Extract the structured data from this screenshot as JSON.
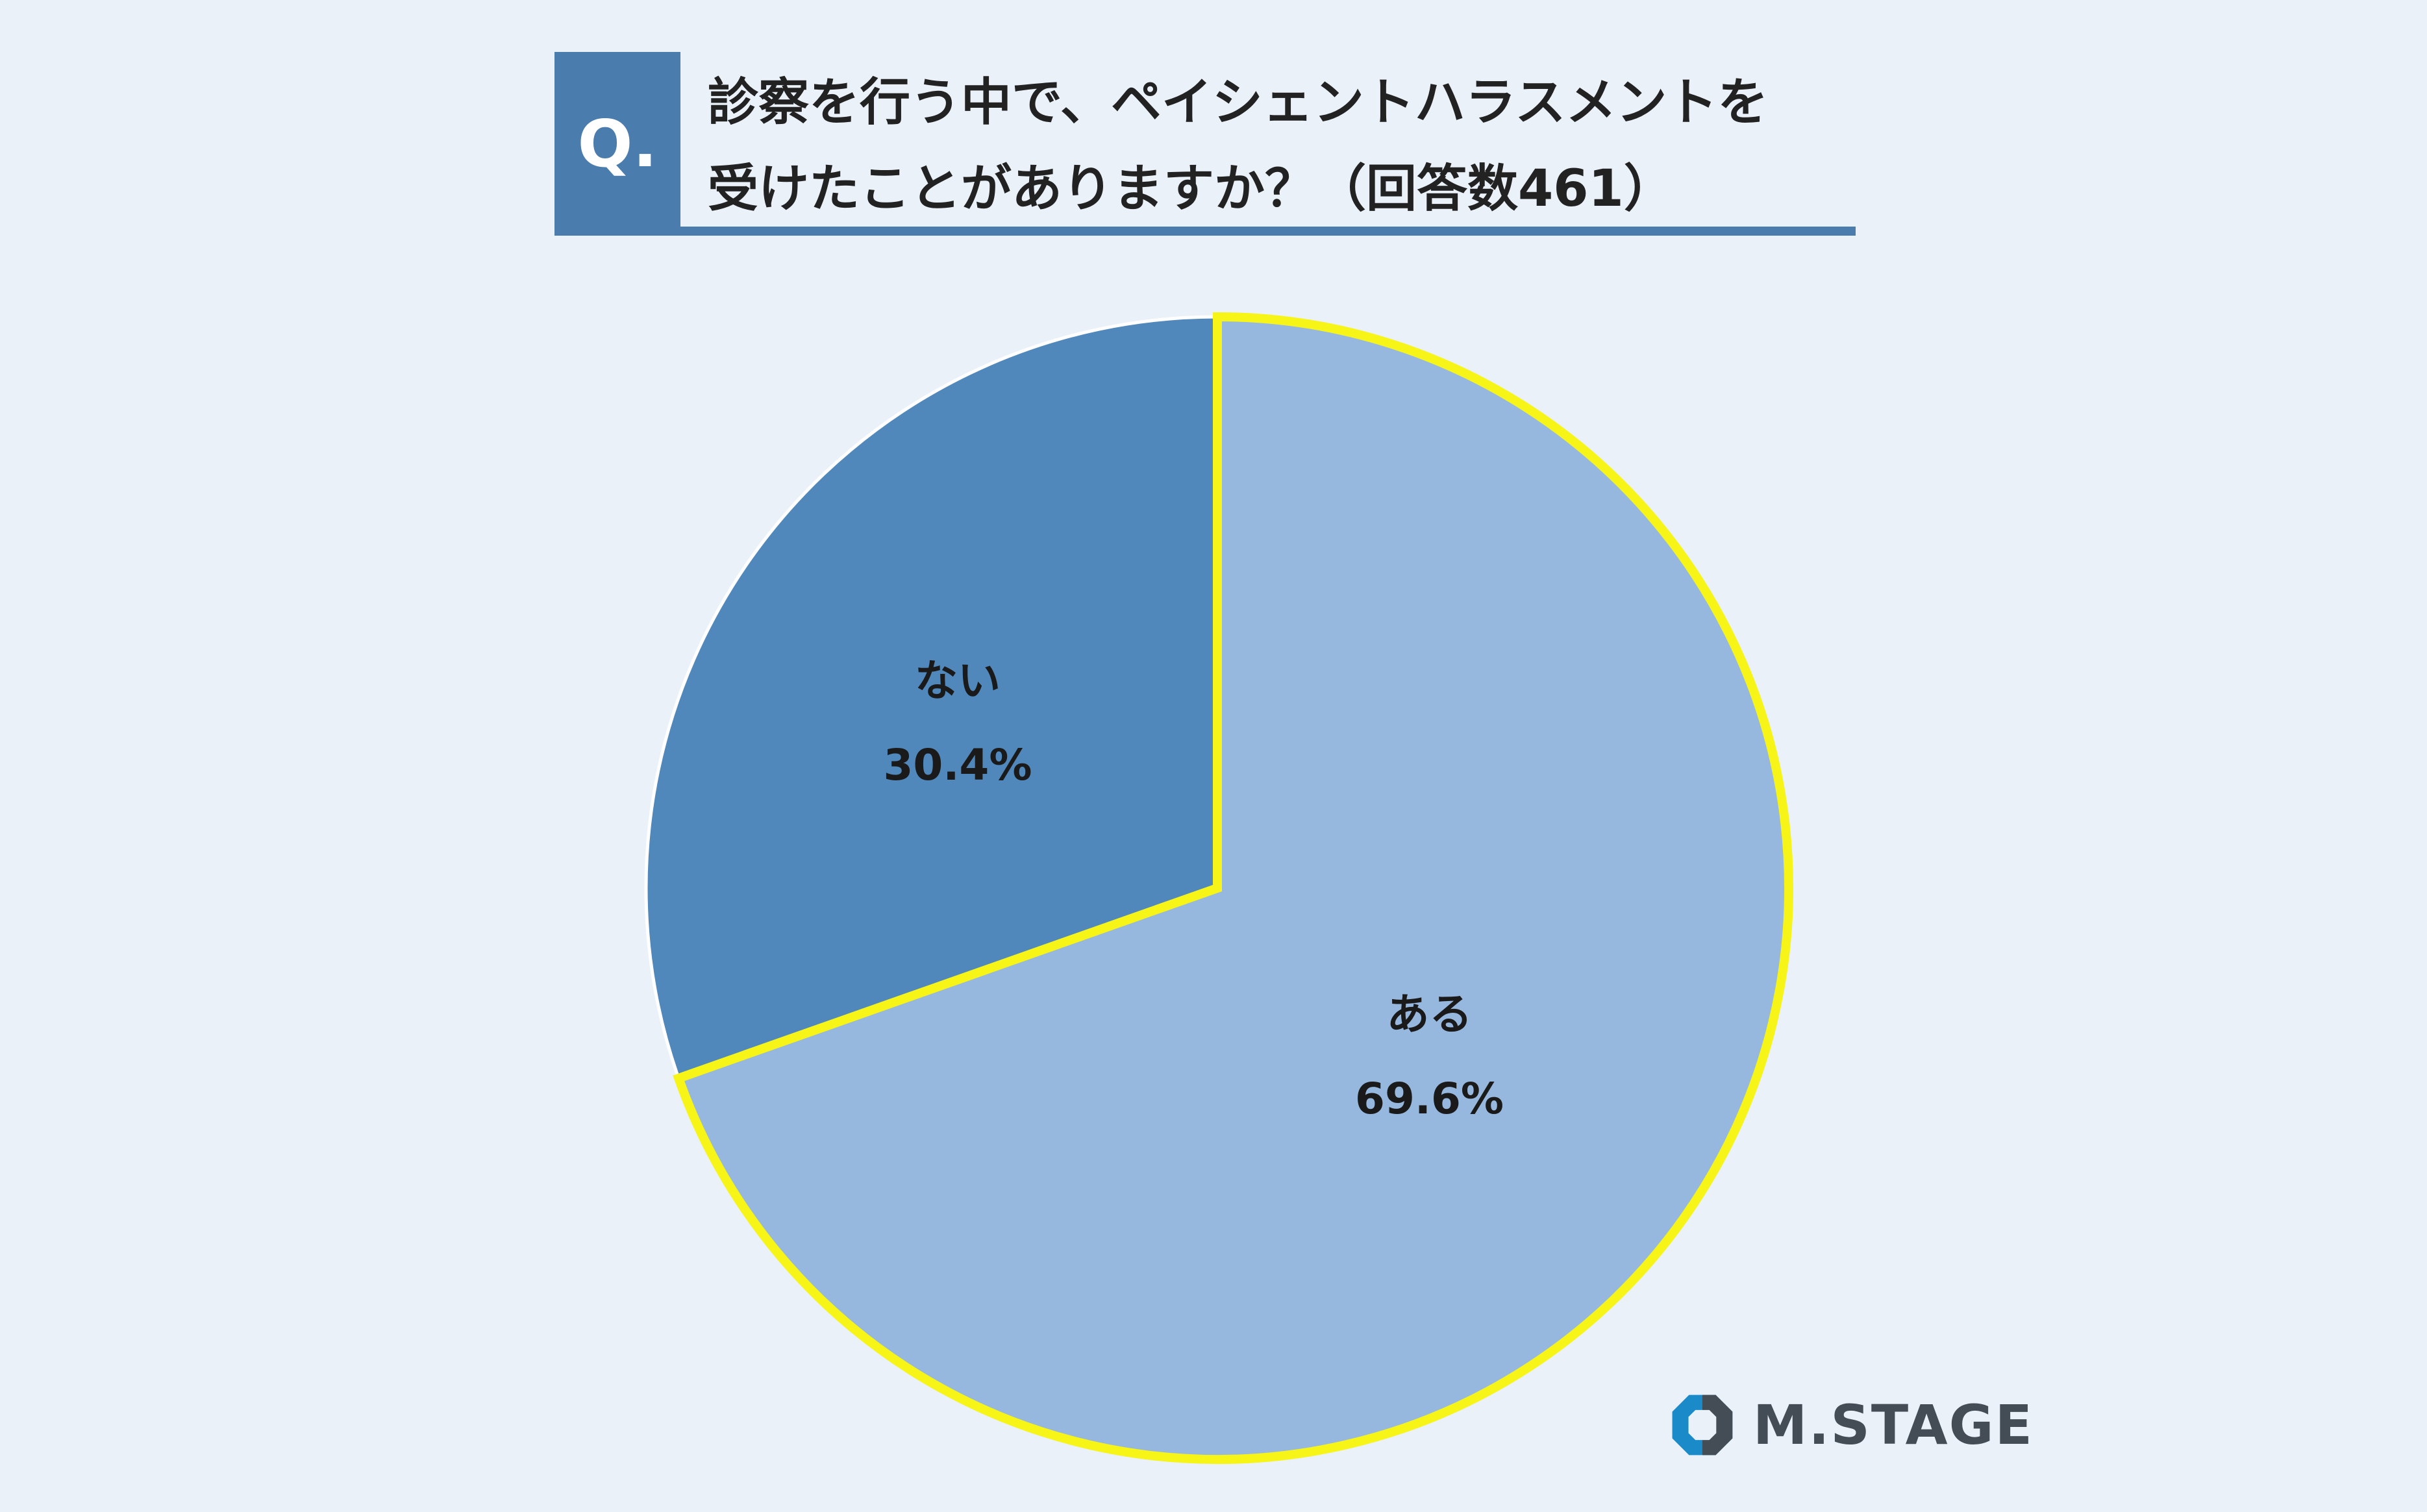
{
  "header": {
    "badge": "Q.",
    "question_line1": "診察を行う中で、ペイシェントハラスメントを",
    "question_line2": "受けたことがありますか？（回答数461）"
  },
  "chart_data": {
    "type": "pie",
    "title": "診察を行う中で、ペイシェントハラスメントを受けたことがありますか？（回答数461）",
    "slices": [
      {
        "label": "ある",
        "value": 69.6,
        "display": "69.6%",
        "color": "#97b8de",
        "highlighted": true
      },
      {
        "label": "ない",
        "value": 30.4,
        "display": "30.4%",
        "color": "#5088bb",
        "highlighted": false
      }
    ],
    "highlight_color": "#f7f417",
    "legend": "none"
  },
  "colors": {
    "background": "#eaf1f9",
    "accent": "#4a7cad",
    "logo_blue": "#1a8bc8",
    "logo_gray": "#444c55"
  },
  "logo": {
    "text": "M.STAGE",
    "icon": "octagon-logo-icon"
  }
}
